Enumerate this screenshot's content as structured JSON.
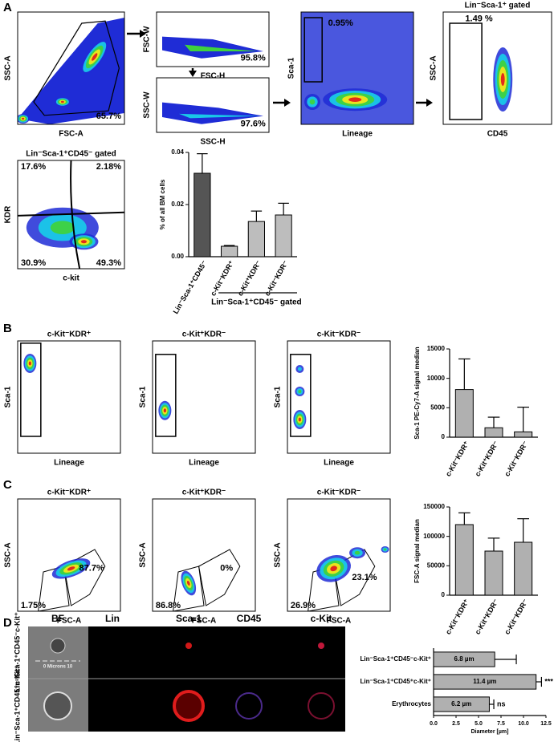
{
  "panel_letters": [
    "A",
    "B",
    "C",
    "D"
  ],
  "flow_plots": [
    {
      "ylabel": "SSC-A",
      "xlabel": "FSC-A",
      "labels": [
        "65.7%"
      ]
    },
    {
      "ylabel": "FSC-W",
      "xlabel": "FSC-H",
      "labels": [
        "95.8%"
      ]
    },
    {
      "ylabel": "SSC-W",
      "xlabel": "SSC-H",
      "labels": [
        "97.6%"
      ]
    },
    {
      "ylabel": "Sca-1",
      "xlabel": "Lineage",
      "labels": [
        "0.95%"
      ]
    },
    {
      "title": "Lin⁻Sca-1⁺ gated",
      "ylabel": "SSC-A",
      "xlabel": "CD45",
      "labels": [
        "1.49 %"
      ]
    },
    {
      "title": "Lin⁻Sca-1⁺CD45⁻ gated",
      "ylabel": "KDR",
      "xlabel": "c-kit",
      "labels": [
        "17.6%",
        "2.18%",
        "30.9%",
        "49.3%"
      ]
    },
    {
      "title": "c-Kit⁻KDR⁺",
      "ylabel": "Sca-1",
      "xlabel": "Lineage"
    },
    {
      "title": "c-Kit⁺KDR⁻",
      "ylabel": "Sca-1",
      "xlabel": "Lineage"
    },
    {
      "title": "c-Kit⁻KDR⁻",
      "ylabel": "Sca-1",
      "xlabel": "Lineage"
    },
    {
      "title": "c-Kit⁻KDR⁺",
      "ylabel": "SSC-A",
      "xlabel": "FSC-A",
      "labels": [
        "1.75%",
        "87.7%"
      ]
    },
    {
      "title": "c-Kit⁺KDR⁻",
      "ylabel": "SSC-A",
      "xlabel": "FSC-A",
      "labels": [
        "86.8%",
        "0%"
      ]
    },
    {
      "title": "c-Kit⁻KDR⁻",
      "ylabel": "SSC-A",
      "xlabel": "FSC-A",
      "labels": [
        "26.9%",
        "23.1%"
      ]
    }
  ],
  "image_grid": {
    "columns": [
      "BF",
      "Lin",
      "Sca-1",
      "CD45",
      "c-Kit"
    ],
    "rows": [
      "Lin⁻Sca-1⁺CD45⁻c-Kit⁺",
      "Lin⁻Sca-1⁺CD45⁺c-Kit⁺"
    ],
    "scale_bar": "0 Microns 10"
  },
  "chart_data": [
    {
      "type": "bar",
      "ylabel": "% of all BM cells",
      "categories": [
        "Lin⁻Sca-1⁺CD45⁻",
        "c-Kit⁻KDR⁺",
        "c-Kit⁺KDR⁻",
        "c-Kit⁻KDR⁻"
      ],
      "values": [
        0.032,
        0.004,
        0.0135,
        0.016
      ],
      "errors": [
        0.0075,
        0.0003,
        0.004,
        0.0045
      ],
      "colors": [
        "#555555",
        "#bdbdbd",
        "#bdbdbd",
        "#bdbdbd"
      ],
      "group_label": "Lin⁻Sca-1⁺CD45⁻ gated",
      "ylim": [
        0,
        0.04
      ],
      "yticks": [
        {
          "value": 0,
          "label": "0.00"
        },
        {
          "value": 0.02,
          "label": "0.02"
        },
        {
          "value": 0.04,
          "label": "0.04"
        }
      ]
    },
    {
      "type": "bar",
      "ylabel": "Sca-1 PE-Cy7-A signal median",
      "categories": [
        "c-Kit⁻KDR⁺",
        "c-Kit⁺KDR⁻",
        "c-Kit⁻KDR⁻"
      ],
      "values": [
        8100,
        1600,
        900
      ],
      "errors": [
        5200,
        1800,
        4200
      ],
      "color": "#b0b0b0",
      "ylim": [
        0,
        15000
      ],
      "yticks": [
        0,
        5000,
        10000,
        15000
      ]
    },
    {
      "type": "bar",
      "ylabel": "FSC-A signal median",
      "categories": [
        "c-Kit⁻KDR⁺",
        "c-Kit⁺KDR⁻",
        "c-Kit⁻KDR⁻"
      ],
      "values": [
        120000,
        75000,
        90000
      ],
      "errors": [
        20000,
        22000,
        40000
      ],
      "color": "#b0b0b0",
      "ylim": [
        0,
        150000
      ],
      "yticks": [
        0,
        50000,
        100000,
        150000
      ]
    },
    {
      "type": "barh",
      "xlabel": "Diameter [µm]",
      "categories": [
        "Lin⁻Sca-1⁺CD45⁻c-Kit⁺",
        "Lin⁻Sca-1⁺CD45⁺c-Kit⁺",
        "Erythrocytes"
      ],
      "values": [
        6.8,
        11.4,
        6.2
      ],
      "value_labels": [
        "6.8 µm",
        "11.4 µm",
        "6.2 µm"
      ],
      "errors": [
        2.4,
        0.6,
        0.5
      ],
      "significance": [
        null,
        "***",
        "ns"
      ],
      "color": "#b0b0b0",
      "xlim": [
        0,
        12.5
      ],
      "xticks": [
        {
          "value": 0,
          "label": "0.0"
        },
        2.5,
        {
          "value": 5,
          "label": "5.0"
        },
        7.5,
        {
          "value": 10,
          "label": "10.0"
        },
        12.5
      ]
    }
  ]
}
